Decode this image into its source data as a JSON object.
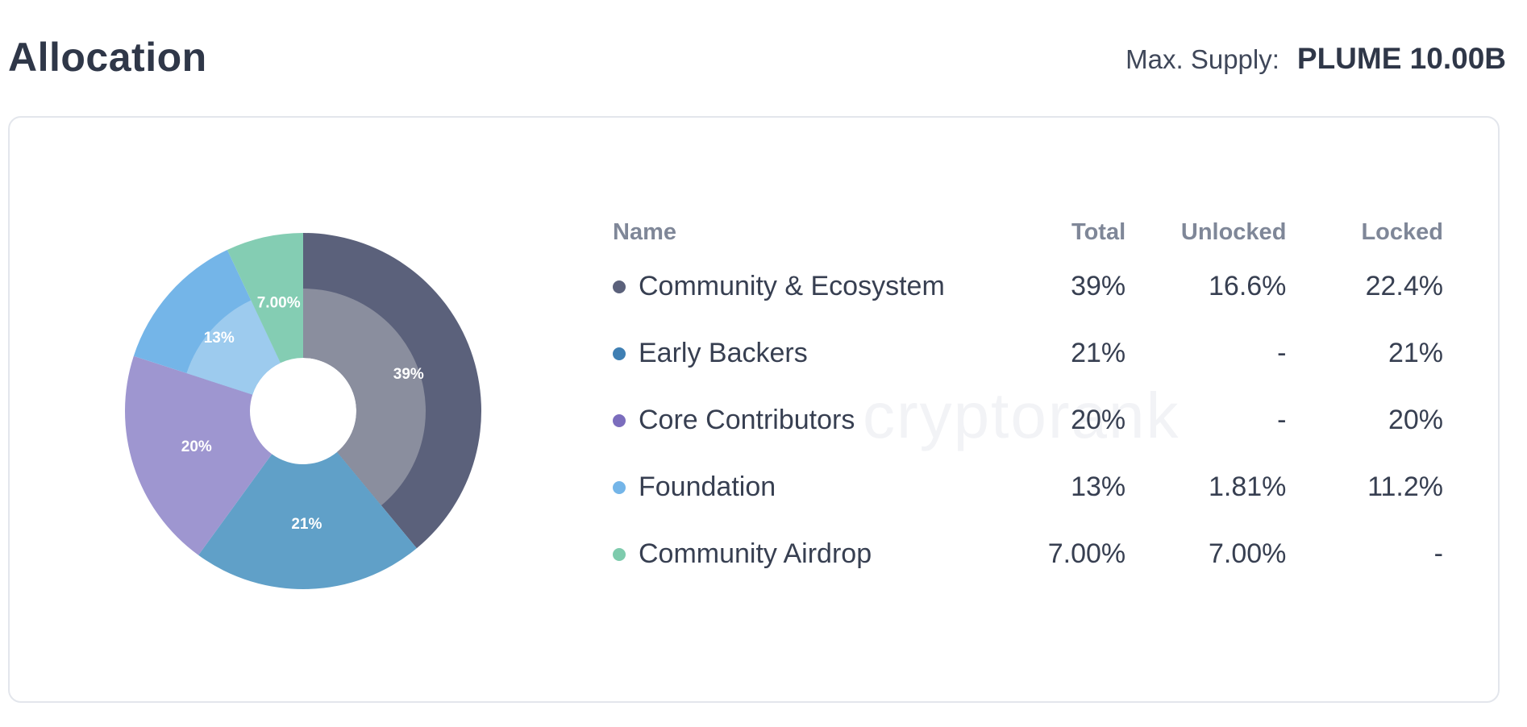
{
  "header": {
    "title": "Allocation",
    "supply_label": "Max. Supply:",
    "supply_value": "PLUME 10.00B"
  },
  "table": {
    "headers": {
      "name": "Name",
      "total": "Total",
      "unlocked": "Unlocked",
      "locked": "Locked"
    },
    "rows": [
      {
        "name": "Community & Ecosystem",
        "total": "39%",
        "unlocked": "16.6%",
        "locked": "22.4%",
        "color": "#5b617b"
      },
      {
        "name": "Early Backers",
        "total": "21%",
        "unlocked": "-",
        "locked": "21%",
        "color": "#3f7fb3"
      },
      {
        "name": "Core Contributors",
        "total": "20%",
        "unlocked": "-",
        "locked": "20%",
        "color": "#7b6dbd"
      },
      {
        "name": "Foundation",
        "total": "13%",
        "unlocked": "1.81%",
        "locked": "11.2%",
        "color": "#74b5e8"
      },
      {
        "name": "Community Airdrop",
        "total": "7.00%",
        "unlocked": "7.00%",
        "locked": "-",
        "color": "#7ecbad"
      }
    ]
  },
  "chart_data": {
    "type": "pie",
    "categories": [
      "Community & Ecosystem",
      "Early Backers",
      "Core Contributors",
      "Foundation",
      "Community Airdrop"
    ],
    "values": [
      39,
      21,
      20,
      13,
      7
    ],
    "labels": [
      "39%",
      "21%",
      "20%",
      "13%",
      "7.00%"
    ],
    "unlocked": [
      16.6,
      0,
      0,
      1.81,
      7.0
    ],
    "colors": {
      "outer": [
        "#5b617b",
        "#60a0c8",
        "#9e96d0",
        "#74b5e8",
        "#84cdb3"
      ],
      "inner": [
        "#8a8e9e",
        "#60a0c8",
        "#9e96d0",
        "#9dcbee",
        "#84cdb3"
      ]
    }
  },
  "watermark": "cryptorank"
}
